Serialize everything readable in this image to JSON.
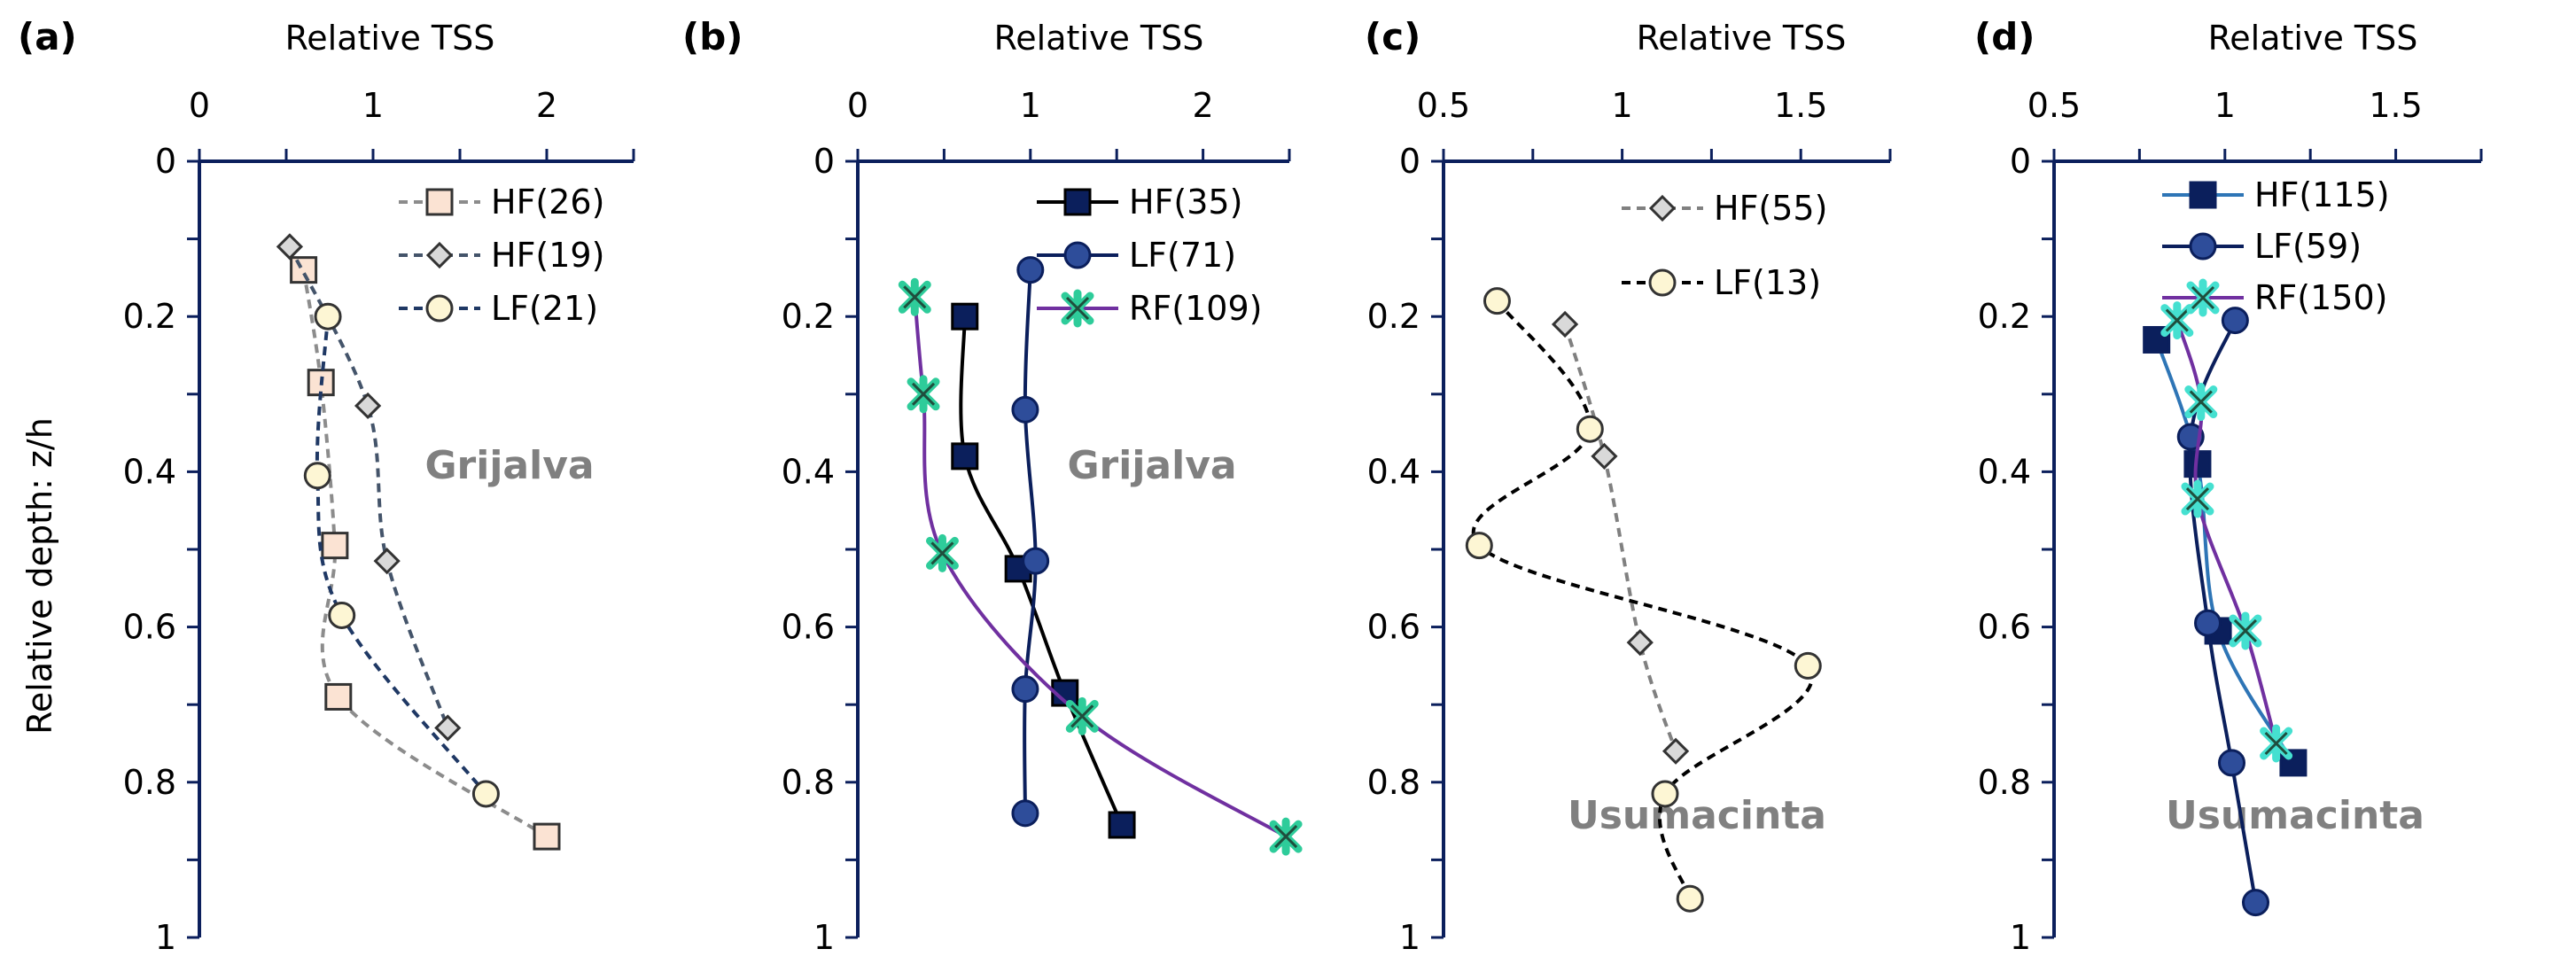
{
  "chart_data": [
    {
      "type": "line",
      "panel_label": "(a)",
      "xlabel": "Relative TSS",
      "ylabel": "Relative depth: z/h",
      "annotation": "Grijalva",
      "xlim": [
        0,
        2.5
      ],
      "ylim": [
        0,
        1
      ],
      "y_inverted": true,
      "x_axis_position": "top",
      "xticks": [
        0,
        1,
        2
      ],
      "yticks": [
        0,
        0.2,
        0.4,
        0.6,
        0.8,
        1
      ],
      "legend_position": "top-right",
      "series": [
        {
          "name": "HF(26)",
          "color": "#8c8c8c",
          "dash": true,
          "marker": "square",
          "marker_fill": "#fbe3d3",
          "marker_stroke": "#333333",
          "points": [
            [
              0.6,
              0.14
            ],
            [
              0.7,
              0.285
            ],
            [
              0.78,
              0.495
            ],
            [
              0.8,
              0.69
            ],
            [
              2.0,
              0.87
            ]
          ]
        },
        {
          "name": "HF(19)",
          "color": "#44546a",
          "dash": true,
          "marker": "diamond",
          "marker_fill": "#d9d9d9",
          "marker_stroke": "#333333",
          "points": [
            [
              0.52,
              0.11
            ],
            [
              0.97,
              0.315
            ],
            [
              1.08,
              0.515
            ],
            [
              1.43,
              0.73
            ]
          ]
        },
        {
          "name": "LF(21)",
          "color": "#1f3864",
          "dash": true,
          "marker": "circle",
          "marker_fill": "#fdf6d4",
          "marker_stroke": "#333333",
          "points": [
            [
              0.74,
              0.2
            ],
            [
              0.68,
              0.405
            ],
            [
              0.82,
              0.585
            ],
            [
              1.65,
              0.815
            ]
          ]
        }
      ]
    },
    {
      "type": "line",
      "panel_label": "(b)",
      "xlabel": "Relative TSS",
      "annotation": "Grijalva",
      "xlim": [
        0,
        2.5
      ],
      "ylim": [
        0,
        1
      ],
      "y_inverted": true,
      "x_axis_position": "top",
      "xticks": [
        0,
        1,
        2
      ],
      "yticks": [
        0,
        0.2,
        0.4,
        0.6,
        0.8,
        1
      ],
      "legend_position": "top-right",
      "series": [
        {
          "name": "HF(35)",
          "color": "#000000",
          "dash": false,
          "marker": "square",
          "marker_fill": "#0b1f5c",
          "marker_stroke": "#000000",
          "points": [
            [
              0.62,
              0.2
            ],
            [
              0.62,
              0.38
            ],
            [
              0.93,
              0.525
            ],
            [
              1.2,
              0.685
            ],
            [
              1.53,
              0.855
            ]
          ]
        },
        {
          "name": "LF(71)",
          "color": "#0b1f5c",
          "dash": false,
          "marker": "circle",
          "marker_fill": "#2e4d9a",
          "marker_stroke": "#0b1f5c",
          "points": [
            [
              1.0,
              0.14
            ],
            [
              0.97,
              0.32
            ],
            [
              1.03,
              0.515
            ],
            [
              0.97,
              0.68
            ],
            [
              0.97,
              0.84
            ]
          ]
        },
        {
          "name": "RF(109)",
          "color": "#7030a0",
          "dash": false,
          "marker": "star",
          "marker_fill": "#2ecc9a",
          "marker_stroke": "#1f4e3d",
          "points": [
            [
              0.33,
              0.175
            ],
            [
              0.38,
              0.3
            ],
            [
              0.49,
              0.505
            ],
            [
              1.3,
              0.715
            ],
            [
              2.48,
              0.87
            ]
          ]
        }
      ]
    },
    {
      "type": "line",
      "panel_label": "(c)",
      "xlabel": "Relative TSS",
      "annotation": "Usumacinta",
      "xlim": [
        0.5,
        1.75
      ],
      "ylim": [
        0,
        1
      ],
      "y_inverted": true,
      "x_axis_position": "top",
      "xticks": [
        0.5,
        1,
        1.5
      ],
      "yticks": [
        0,
        0.2,
        0.4,
        0.6,
        0.8,
        1
      ],
      "legend_position": "top-right",
      "series": [
        {
          "name": "HF(55)",
          "color": "#808080",
          "dash": true,
          "marker": "diamond",
          "marker_fill": "#d9d9d9",
          "marker_stroke": "#333333",
          "points": [
            [
              0.84,
              0.21
            ],
            [
              0.95,
              0.38
            ],
            [
              1.05,
              0.62
            ],
            [
              1.15,
              0.76
            ]
          ]
        },
        {
          "name": "LF(13)",
          "color": "#000000",
          "dash": true,
          "marker": "circle",
          "marker_fill": "#fdf6d4",
          "marker_stroke": "#333333",
          "points": [
            [
              0.65,
              0.18
            ],
            [
              0.91,
              0.345
            ],
            [
              0.6,
              0.495
            ],
            [
              1.52,
              0.65
            ],
            [
              1.12,
              0.815
            ],
            [
              1.19,
              0.95
            ]
          ]
        }
      ]
    },
    {
      "type": "line",
      "panel_label": "(d)",
      "xlabel": "Relative TSS",
      "annotation": "Usumacinta",
      "xlim": [
        0.5,
        1.75
      ],
      "ylim": [
        0,
        1
      ],
      "y_inverted": true,
      "x_axis_position": "top",
      "xticks": [
        0.5,
        1,
        1.5
      ],
      "yticks": [
        0,
        0.2,
        0.4,
        0.6,
        0.8,
        1
      ],
      "legend_position": "top-right",
      "series": [
        {
          "name": "HF(115)",
          "color": "#2e75b6",
          "dash": false,
          "marker": "square",
          "marker_fill": "#0b1f5c",
          "marker_stroke": "#0b1f5c",
          "points": [
            [
              0.8,
              0.23
            ],
            [
              0.92,
              0.39
            ],
            [
              0.98,
              0.605
            ],
            [
              1.2,
              0.775
            ]
          ]
        },
        {
          "name": "LF(59)",
          "color": "#0b1f5c",
          "dash": false,
          "marker": "circle",
          "marker_fill": "#2e4d9a",
          "marker_stroke": "#0b1f5c",
          "points": [
            [
              1.03,
              0.205
            ],
            [
              0.9,
              0.355
            ],
            [
              0.95,
              0.595
            ],
            [
              1.02,
              0.775
            ],
            [
              1.09,
              0.955
            ]
          ]
        },
        {
          "name": "RF(150)",
          "color": "#7030a0",
          "dash": false,
          "marker": "star",
          "marker_fill": "#45e0d0",
          "marker_stroke": "#1f4e3d",
          "points": [
            [
              0.86,
              0.205
            ],
            [
              0.93,
              0.31
            ],
            [
              0.92,
              0.435
            ],
            [
              1.06,
              0.605
            ],
            [
              1.15,
              0.75
            ]
          ]
        }
      ]
    }
  ]
}
